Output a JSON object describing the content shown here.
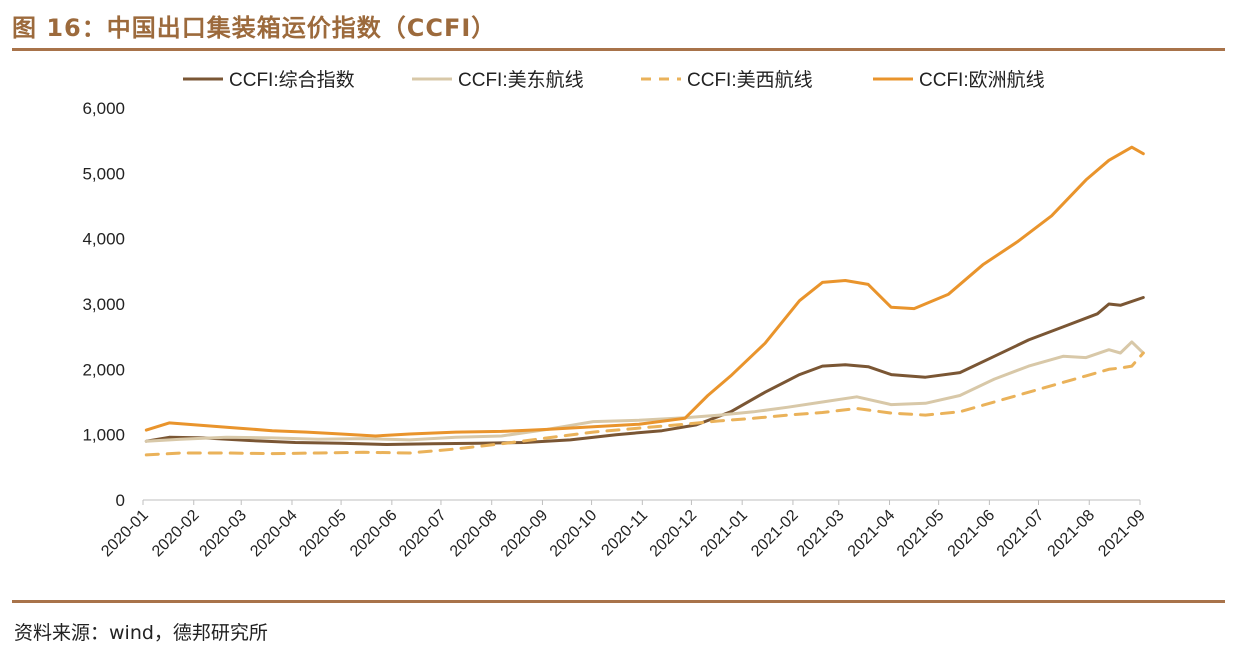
{
  "figure": {
    "title": "图 16：中国出口集装箱运价指数（CCFI）",
    "source": "资料来源：wind，德邦研究所"
  },
  "colors": {
    "accent": "#a8734a",
    "title": "#9c6a3c"
  },
  "chart_data": {
    "type": "line",
    "title": "",
    "xlabel": "",
    "ylabel": "",
    "ylim": [
      0,
      6000
    ],
    "yticks": [
      0,
      1000,
      2000,
      3000,
      4000,
      5000,
      6000
    ],
    "ytick_labels": [
      "0",
      "1,000",
      "2,000",
      "3,000",
      "4,000",
      "5,000",
      "6,000"
    ],
    "x_range": [
      "2020-01",
      "2021-09"
    ],
    "xtick_labels": [
      "2020-01",
      "2020-02",
      "2020-03",
      "2020-04",
      "2020-05",
      "2020-06",
      "2020-07",
      "2020-08",
      "2020-09",
      "2020-10",
      "2020-11",
      "2020-12",
      "2021-01",
      "2021-02",
      "2021-03",
      "2021-04",
      "2021-05",
      "2021-06",
      "2021-07",
      "2021-08",
      "2021-09"
    ],
    "grid": false,
    "legend_position": "top",
    "series": [
      {
        "name": "CCFI:综合指数",
        "color": "#7a5634",
        "dash": "solid",
        "x": [
          "2020-01-03",
          "2020-01-17",
          "2020-02-07",
          "2020-03-06",
          "2020-04-03",
          "2020-05-01",
          "2020-05-29",
          "2020-06-26",
          "2020-07-24",
          "2020-08-21",
          "2020-09-18",
          "2020-10-16",
          "2020-11-13",
          "2020-12-04",
          "2020-12-25",
          "2021-01-15",
          "2021-02-05",
          "2021-02-19",
          "2021-03-05",
          "2021-03-19",
          "2021-04-02",
          "2021-04-23",
          "2021-05-14",
          "2021-06-04",
          "2021-06-25",
          "2021-07-16",
          "2021-08-06",
          "2021-08-13",
          "2021-08-20",
          "2021-09-03"
        ],
        "y": [
          900,
          960,
          950,
          910,
          880,
          870,
          850,
          860,
          870,
          880,
          920,
          1000,
          1060,
          1150,
          1350,
          1650,
          1920,
          2050,
          2070,
          2040,
          1920,
          1880,
          1950,
          2200,
          2450,
          2650,
          2850,
          3000,
          2980,
          3100
        ]
      },
      {
        "name": "CCFI:美东航线",
        "color": "#d8c8a8",
        "dash": "solid",
        "x": [
          "2020-01-03",
          "2020-01-24",
          "2020-02-21",
          "2020-03-20",
          "2020-04-17",
          "2020-05-15",
          "2020-06-12",
          "2020-07-10",
          "2020-08-07",
          "2020-09-04",
          "2020-10-02",
          "2020-10-30",
          "2020-11-27",
          "2020-12-18",
          "2021-01-08",
          "2021-01-29",
          "2021-02-19",
          "2021-03-12",
          "2021-04-02",
          "2021-04-23",
          "2021-05-14",
          "2021-06-04",
          "2021-06-25",
          "2021-07-16",
          "2021-07-30",
          "2021-08-13",
          "2021-08-20",
          "2021-08-27",
          "2021-09-03"
        ],
        "y": [
          900,
          930,
          960,
          950,
          930,
          940,
          920,
          960,
          980,
          1080,
          1200,
          1220,
          1260,
          1300,
          1350,
          1420,
          1500,
          1580,
          1460,
          1480,
          1600,
          1850,
          2050,
          2200,
          2180,
          2300,
          2250,
          2420,
          2250
        ]
      },
      {
        "name": "CCFI:美西航线",
        "color": "#eab25a",
        "dash": "dashed",
        "x": [
          "2020-01-03",
          "2020-01-24",
          "2020-02-21",
          "2020-03-20",
          "2020-04-17",
          "2020-05-15",
          "2020-06-12",
          "2020-07-10",
          "2020-08-07",
          "2020-09-04",
          "2020-10-02",
          "2020-10-30",
          "2020-11-27",
          "2020-12-18",
          "2021-01-08",
          "2021-01-29",
          "2021-02-19",
          "2021-03-12",
          "2021-04-02",
          "2021-04-23",
          "2021-05-14",
          "2021-06-04",
          "2021-06-25",
          "2021-07-16",
          "2021-07-30",
          "2021-08-13",
          "2021-08-20",
          "2021-08-27",
          "2021-09-03"
        ],
        "y": [
          690,
          720,
          720,
          710,
          720,
          730,
          720,
          780,
          860,
          950,
          1040,
          1100,
          1160,
          1210,
          1250,
          1300,
          1340,
          1400,
          1330,
          1300,
          1350,
          1500,
          1650,
          1800,
          1900,
          2000,
          2020,
          2050,
          2250
        ]
      },
      {
        "name": "CCFI:欧洲航线",
        "color": "#e9942c",
        "dash": "solid",
        "x": [
          "2020-01-03",
          "2020-01-17",
          "2020-02-07",
          "2020-02-28",
          "2020-03-20",
          "2020-04-10",
          "2020-05-01",
          "2020-05-22",
          "2020-06-12",
          "2020-07-10",
          "2020-08-07",
          "2020-09-04",
          "2020-10-02",
          "2020-10-30",
          "2020-11-27",
          "2020-12-11",
          "2020-12-25",
          "2021-01-15",
          "2021-02-05",
          "2021-02-19",
          "2021-03-05",
          "2021-03-19",
          "2021-04-02",
          "2021-04-16",
          "2021-05-07",
          "2021-05-28",
          "2021-06-18",
          "2021-07-09",
          "2021-07-30",
          "2021-08-13",
          "2021-08-27",
          "2021-09-03"
        ],
        "y": [
          1070,
          1180,
          1140,
          1100,
          1060,
          1040,
          1010,
          980,
          1010,
          1040,
          1050,
          1080,
          1120,
          1160,
          1250,
          1600,
          1900,
          2400,
          3050,
          3330,
          3360,
          3300,
          2950,
          2930,
          3150,
          3600,
          3950,
          4350,
          4900,
          5200,
          5400,
          5300
        ]
      }
    ]
  }
}
